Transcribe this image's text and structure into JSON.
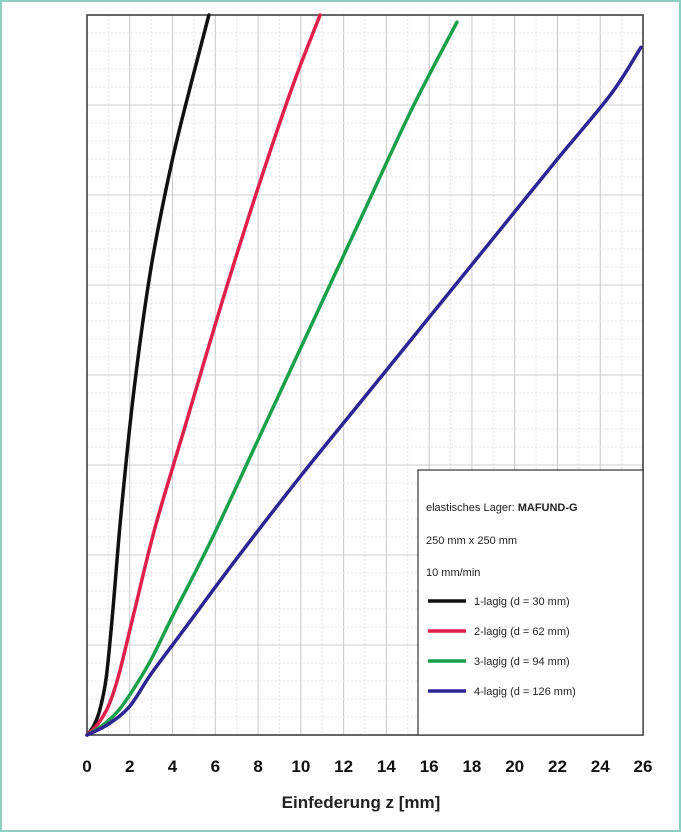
{
  "chart_data": {
    "type": "line",
    "title": "",
    "xlabel": "Einfederung z [mm]",
    "ylabel": "",
    "xlim": [
      0,
      26
    ],
    "xticks": [
      0,
      2,
      4,
      6,
      8,
      10,
      12,
      14,
      16,
      18,
      20,
      22,
      24,
      26
    ],
    "grid": true,
    "legend_position": "bottom-right",
    "legend": {
      "header_prefix": "elastisches Lager: ",
      "header_bold": "MAFUND-G",
      "line2": "250 mm x 250 mm",
      "line3": "10 mm/min"
    },
    "series": [
      {
        "name": "1-lagig (d = 30 mm)",
        "color": "#111111",
        "points": [
          [
            0,
            0
          ],
          [
            0.3,
            0.012
          ],
          [
            0.6,
            0.035
          ],
          [
            0.9,
            0.08
          ],
          [
            1.2,
            0.17
          ],
          [
            1.6,
            0.31
          ],
          [
            2.2,
            0.48
          ],
          [
            3,
            0.65
          ],
          [
            4,
            0.8
          ],
          [
            5,
            0.92
          ],
          [
            5.7,
            1.0
          ]
        ]
      },
      {
        "name": "2-lagig (d = 62 mm)",
        "color": "#e0204a",
        "points": [
          [
            0,
            0
          ],
          [
            0.5,
            0.015
          ],
          [
            1,
            0.04
          ],
          [
            1.5,
            0.085
          ],
          [
            2.2,
            0.17
          ],
          [
            3.2,
            0.29
          ],
          [
            4.6,
            0.43
          ],
          [
            6.3,
            0.6
          ],
          [
            8,
            0.76
          ],
          [
            9.6,
            0.9
          ],
          [
            10.9,
            1.0
          ]
        ]
      },
      {
        "name": "3-lagig (d = 94 mm)",
        "color": "#1aa04a",
        "points": [
          [
            0,
            0
          ],
          [
            0.8,
            0.015
          ],
          [
            1.5,
            0.035
          ],
          [
            2.2,
            0.065
          ],
          [
            3,
            0.105
          ],
          [
            4,
            0.165
          ],
          [
            5.8,
            0.27
          ],
          [
            8,
            0.41
          ],
          [
            10.5,
            0.57
          ],
          [
            13,
            0.73
          ],
          [
            15.2,
            0.87
          ],
          [
            17.3,
            0.99
          ]
        ]
      },
      {
        "name": "4-lagig (d = 126 mm)",
        "color": "#2e2494",
        "points": [
          [
            0,
            0
          ],
          [
            1,
            0.015
          ],
          [
            2,
            0.04
          ],
          [
            3,
            0.085
          ],
          [
            4.5,
            0.145
          ],
          [
            7,
            0.245
          ],
          [
            10,
            0.36
          ],
          [
            13,
            0.47
          ],
          [
            16,
            0.58
          ],
          [
            19,
            0.69
          ],
          [
            22,
            0.8
          ],
          [
            24.5,
            0.89
          ],
          [
            25.9,
            0.955
          ]
        ]
      }
    ]
  }
}
